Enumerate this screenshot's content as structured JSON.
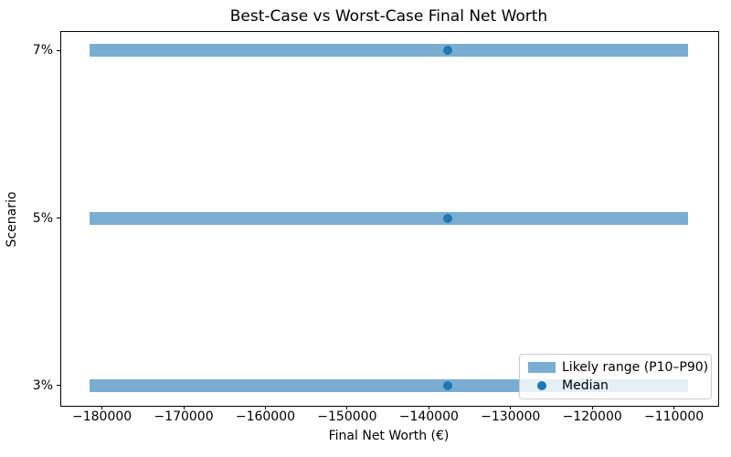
{
  "chart_data": {
    "type": "bar",
    "orientation": "horizontal",
    "title": "Best-Case vs Worst-Case Final Net Worth",
    "xlabel": "Final Net Worth (€)",
    "ylabel": "Scenario",
    "categories": [
      "7%",
      "5%",
      "3%"
    ],
    "rows": [
      {
        "scenario": "7%",
        "p10": -181500,
        "median": -137700,
        "p90": -108300
      },
      {
        "scenario": "5%",
        "p10": -181500,
        "median": -137700,
        "p90": -108300
      },
      {
        "scenario": "3%",
        "p10": -181500,
        "median": -137700,
        "p90": -108300
      }
    ],
    "x_axis": {
      "ticks": [
        {
          "value": -180000,
          "label": "−180000"
        },
        {
          "value": -170000,
          "label": "−170000"
        },
        {
          "value": -160000,
          "label": "−160000"
        },
        {
          "value": -150000,
          "label": "−150000"
        },
        {
          "value": -140000,
          "label": "−140000"
        },
        {
          "value": -130000,
          "label": "−130000"
        },
        {
          "value": -120000,
          "label": "−120000"
        },
        {
          "value": -110000,
          "label": "−110000"
        }
      ]
    },
    "xlim": [
      -185100,
      -104700
    ],
    "ylim": [
      -0.115,
      2.115
    ],
    "bar_height_units": 0.076,
    "grid": false,
    "legend": {
      "position": "lower right",
      "items": [
        {
          "label": "Likely range (P10–P90)",
          "marker": "patch"
        },
        {
          "label": "Median",
          "marker": "dot"
        }
      ]
    },
    "colors": {
      "bar": "#79add2",
      "median": "#1f77b4",
      "text": "#000000",
      "spine": "#000000",
      "legend_border": "#cccccc"
    }
  }
}
